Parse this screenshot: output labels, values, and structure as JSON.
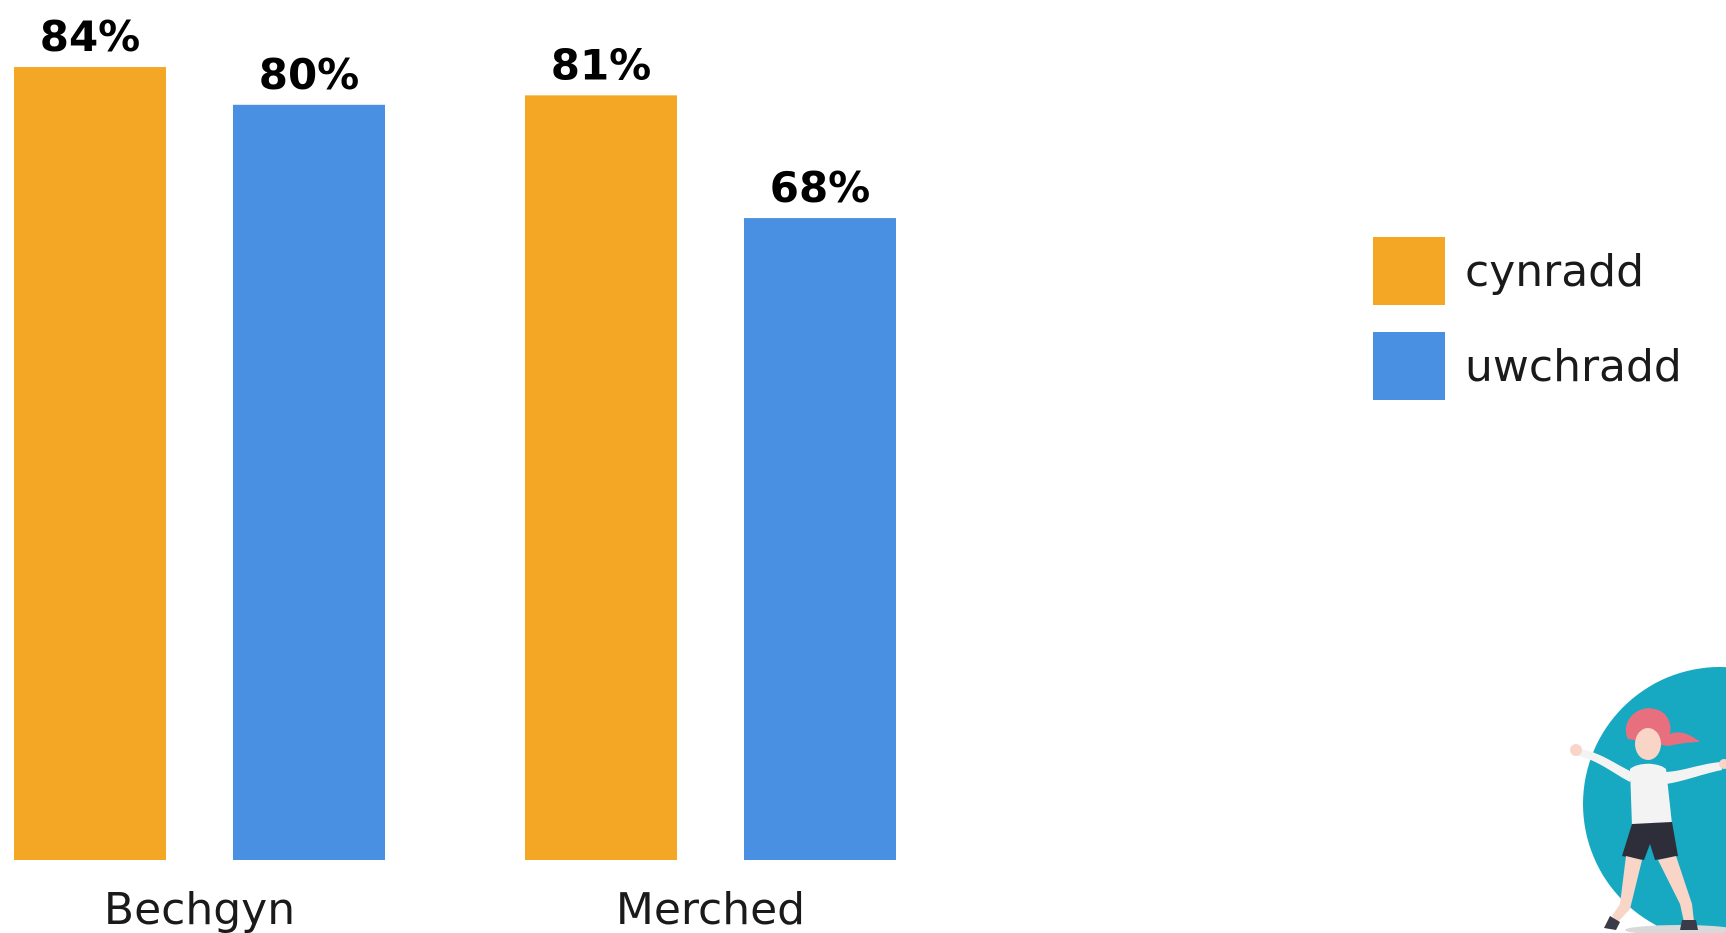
{
  "chart_data": {
    "type": "bar",
    "categories": [
      "Bechgyn",
      "Merched"
    ],
    "series": [
      {
        "name": "cynradd",
        "values": [
          84,
          81
        ],
        "labels": [
          "84%",
          "81%"
        ],
        "color": "#F4A724"
      },
      {
        "name": "uwchradd",
        "values": [
          80,
          68
        ],
        "labels": [
          "80%",
          "68%"
        ],
        "color": "#4A90E2"
      }
    ],
    "value_suffix": "%",
    "legend_position": "right",
    "grid": false,
    "y_axis_visible": false
  },
  "legend": {
    "items": [
      {
        "label": "cynradd",
        "color": "#F4A724"
      },
      {
        "label": "uwchradd",
        "color": "#4A90E2"
      }
    ]
  },
  "illustration": {
    "icon": "dancing-woman-icon",
    "circle_color": "#17A9C1"
  }
}
